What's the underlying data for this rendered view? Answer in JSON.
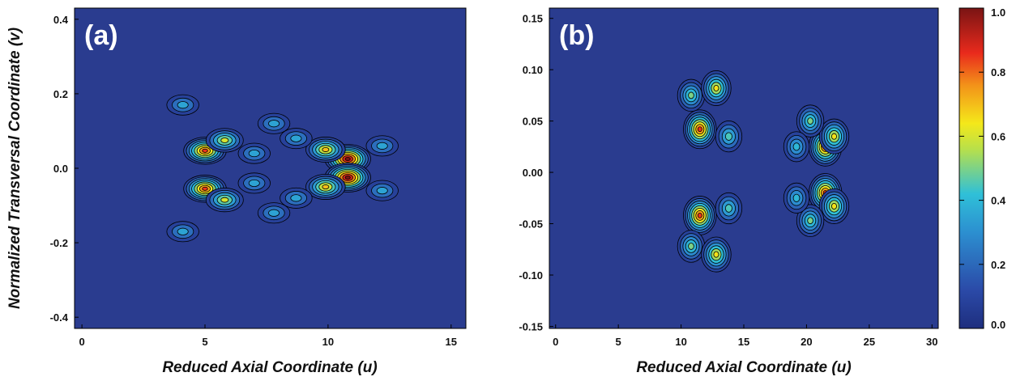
{
  "chart_data": [
    {
      "type": "heatmap",
      "panel_label": "(a)",
      "xlabel": "Reduced Axial Coordinate (u)",
      "ylabel": "Normalized Transversal Coordinate (v)",
      "xlim": [
        -0.3,
        15.6
      ],
      "ylim": [
        -0.43,
        0.43
      ],
      "xticks": [
        "0",
        "5",
        "10",
        "15"
      ],
      "yticks": [
        "-0.4",
        "-0.2",
        "0.0",
        "0.2",
        "0.4"
      ],
      "peaks": [
        {
          "u": 5.0,
          "v": 0.047,
          "value": 0.85
        },
        {
          "u": 5.0,
          "v": -0.055,
          "value": 0.85
        },
        {
          "u": 5.8,
          "v": 0.075,
          "value": 0.6
        },
        {
          "u": 5.8,
          "v": -0.085,
          "value": 0.6
        },
        {
          "u": 10.8,
          "v": 0.025,
          "value": 1.0
        },
        {
          "u": 10.8,
          "v": -0.025,
          "value": 1.0
        },
        {
          "u": 9.9,
          "v": 0.05,
          "value": 0.7
        },
        {
          "u": 9.9,
          "v": -0.05,
          "value": 0.7
        },
        {
          "u": 4.1,
          "v": 0.17,
          "value": 0.35
        },
        {
          "u": 4.1,
          "v": -0.17,
          "value": 0.35
        },
        {
          "u": 7.8,
          "v": 0.12,
          "value": 0.35
        },
        {
          "u": 7.8,
          "v": -0.12,
          "value": 0.35
        },
        {
          "u": 8.7,
          "v": 0.08,
          "value": 0.35
        },
        {
          "u": 8.7,
          "v": -0.08,
          "value": 0.35
        },
        {
          "u": 7.0,
          "v": 0.04,
          "value": 0.35
        },
        {
          "u": 7.0,
          "v": -0.04,
          "value": 0.35
        },
        {
          "u": 12.2,
          "v": 0.06,
          "value": 0.35
        },
        {
          "u": 12.2,
          "v": -0.06,
          "value": 0.35
        }
      ]
    },
    {
      "type": "heatmap",
      "panel_label": "(b)",
      "xlabel": "Reduced Axial Coordinate (u)",
      "ylabel": "",
      "xlim": [
        -0.5,
        30.5
      ],
      "ylim": [
        -0.152,
        0.16
      ],
      "xticks": [
        "0",
        "5",
        "10",
        "15",
        "20",
        "25",
        "30"
      ],
      "yticks": [
        "-0.15",
        "-0.10",
        "-0.05",
        "0.00",
        "0.05",
        "0.10",
        "0.15"
      ],
      "peaks": [
        {
          "u": 11.5,
          "v": 0.042,
          "value": 0.85
        },
        {
          "u": 11.5,
          "v": -0.042,
          "value": 0.85
        },
        {
          "u": 10.8,
          "v": 0.075,
          "value": 0.5
        },
        {
          "u": 10.8,
          "v": -0.072,
          "value": 0.5
        },
        {
          "u": 12.8,
          "v": 0.082,
          "value": 0.65
        },
        {
          "u": 12.8,
          "v": -0.08,
          "value": 0.65
        },
        {
          "u": 13.8,
          "v": 0.035,
          "value": 0.45
        },
        {
          "u": 13.8,
          "v": -0.035,
          "value": 0.45
        },
        {
          "u": 21.5,
          "v": 0.025,
          "value": 0.85
        },
        {
          "u": 21.5,
          "v": -0.02,
          "value": 0.85
        },
        {
          "u": 22.2,
          "v": 0.035,
          "value": 0.65
        },
        {
          "u": 22.2,
          "v": -0.033,
          "value": 0.65
        },
        {
          "u": 20.3,
          "v": 0.05,
          "value": 0.5
        },
        {
          "u": 20.3,
          "v": -0.047,
          "value": 0.5
        },
        {
          "u": 19.2,
          "v": 0.025,
          "value": 0.4
        },
        {
          "u": 19.2,
          "v": -0.025,
          "value": 0.4
        }
      ]
    }
  ],
  "colorbar": {
    "ticks": [
      "0.0",
      "0.2",
      "0.4",
      "0.6",
      "0.8",
      "1.0"
    ],
    "range": [
      0.0,
      1.0
    ],
    "colormap": [
      "#00008f",
      "#0000ff",
      "#00ffff",
      "#ffff00",
      "#ff0000",
      "#800000"
    ]
  }
}
